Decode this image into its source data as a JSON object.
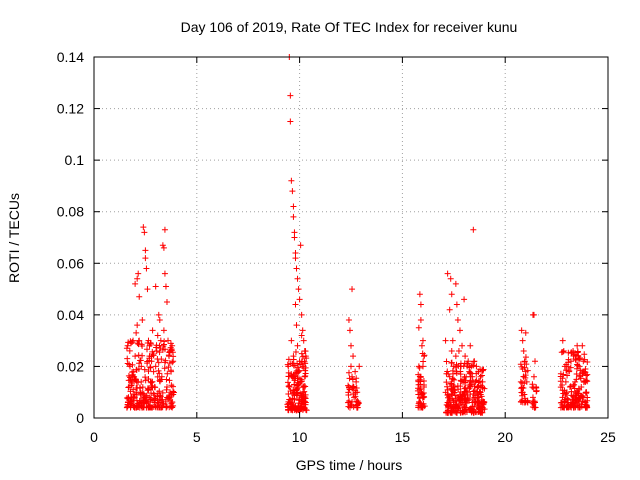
{
  "chart_data": {
    "type": "scatter",
    "title": "Day 106 of 2019, Rate Of TEC Index for receiver kunu",
    "xlabel": "GPS time / hours",
    "ylabel": "ROTI / TECUs",
    "xlim": [
      0,
      25
    ],
    "ylim": [
      0,
      0.14
    ],
    "xticks": [
      0,
      5,
      10,
      15,
      20,
      25
    ],
    "xtick_labels": [
      "0",
      "5",
      "10",
      "15",
      "20",
      "25"
    ],
    "yticks": [
      0,
      0.02,
      0.04,
      0.06,
      0.08,
      0.1,
      0.12,
      0.14
    ],
    "ytick_labels": [
      "0",
      "0.02",
      "0.04",
      "0.06",
      "0.08",
      "0.1",
      "0.12",
      "0.14"
    ],
    "grid": true,
    "marker": "+",
    "color": "#ff0000",
    "series": [
      {
        "points": [
          [
            1.6,
            0.004
          ],
          [
            1.7,
            0.012
          ],
          [
            1.75,
            0.02
          ],
          [
            1.8,
            0.029
          ],
          [
            1.85,
            0.008
          ],
          [
            1.9,
            0.03
          ],
          [
            1.95,
            0.016
          ],
          [
            2.0,
            0.024
          ],
          [
            2.05,
            0.033
          ],
          [
            2.1,
            0.036
          ],
          [
            2.0,
            0.052
          ],
          [
            2.1,
            0.054
          ],
          [
            2.15,
            0.056
          ],
          [
            2.2,
            0.047
          ],
          [
            2.25,
            0.01
          ],
          [
            2.3,
            0.02
          ],
          [
            2.35,
            0.038
          ],
          [
            2.4,
            0.074
          ],
          [
            2.45,
            0.072
          ],
          [
            2.5,
            0.062
          ],
          [
            2.5,
            0.065
          ],
          [
            2.55,
            0.058
          ],
          [
            2.6,
            0.05
          ],
          [
            2.65,
            0.03
          ],
          [
            2.7,
            0.028
          ],
          [
            2.75,
            0.014
          ],
          [
            2.8,
            0.022
          ],
          [
            2.85,
            0.034
          ],
          [
            2.9,
            0.018
          ],
          [
            2.95,
            0.012
          ],
          [
            3.0,
            0.051
          ],
          [
            3.05,
            0.026
          ],
          [
            3.1,
            0.032
          ],
          [
            3.15,
            0.04
          ],
          [
            3.2,
            0.038
          ],
          [
            3.25,
            0.03
          ],
          [
            3.3,
            0.016
          ],
          [
            3.35,
            0.067
          ],
          [
            3.4,
            0.066
          ],
          [
            3.45,
            0.073
          ],
          [
            3.45,
            0.056
          ],
          [
            3.5,
            0.051
          ],
          [
            3.55,
            0.045
          ],
          [
            3.6,
            0.03
          ],
          [
            3.65,
            0.024
          ],
          [
            3.7,
            0.01
          ],
          [
            3.75,
            0.018
          ],
          [
            3.8,
            0.028
          ],
          [
            3.85,
            0.022
          ],
          [
            3.6,
            0.008
          ],
          [
            1.65,
            0.006
          ],
          [
            2.05,
            0.01
          ],
          [
            2.45,
            0.006
          ],
          [
            2.95,
            0.006
          ],
          [
            3.25,
            0.006
          ],
          [
            3.55,
            0.012
          ],
          [
            2.2,
            0.03
          ],
          [
            2.7,
            0.024
          ],
          [
            3.0,
            0.02
          ],
          [
            3.4,
            0.034
          ],
          [
            9.5,
            0.14
          ],
          [
            9.55,
            0.125
          ],
          [
            9.55,
            0.115
          ],
          [
            9.6,
            0.092
          ],
          [
            9.65,
            0.088
          ],
          [
            9.7,
            0.082
          ],
          [
            9.7,
            0.078
          ],
          [
            9.75,
            0.072
          ],
          [
            9.75,
            0.07
          ],
          [
            9.8,
            0.064
          ],
          [
            9.8,
            0.062
          ],
          [
            9.85,
            0.058
          ],
          [
            9.9,
            0.054
          ],
          [
            9.95,
            0.05
          ],
          [
            10.0,
            0.046
          ],
          [
            10.05,
            0.067
          ],
          [
            10.1,
            0.04
          ],
          [
            10.15,
            0.034
          ],
          [
            10.2,
            0.03
          ],
          [
            10.25,
            0.026
          ],
          [
            9.45,
            0.02
          ],
          [
            9.5,
            0.012
          ],
          [
            9.55,
            0.006
          ],
          [
            9.6,
            0.03
          ],
          [
            9.65,
            0.016
          ],
          [
            9.7,
            0.024
          ],
          [
            9.75,
            0.01
          ],
          [
            9.85,
            0.036
          ],
          [
            9.9,
            0.028
          ],
          [
            9.95,
            0.018
          ],
          [
            10.0,
            0.022
          ],
          [
            10.05,
            0.014
          ],
          [
            10.1,
            0.008
          ],
          [
            10.15,
            0.02
          ],
          [
            10.2,
            0.012
          ],
          [
            10.25,
            0.016
          ],
          [
            10.3,
            0.024
          ],
          [
            10.3,
            0.006
          ],
          [
            9.8,
            0.044
          ],
          [
            10.1,
            0.032
          ],
          [
            12.4,
            0.038
          ],
          [
            12.45,
            0.034
          ],
          [
            12.5,
            0.028
          ],
          [
            12.55,
            0.05
          ],
          [
            12.5,
            0.02
          ],
          [
            12.55,
            0.016
          ],
          [
            12.6,
            0.012
          ],
          [
            12.65,
            0.008
          ],
          [
            12.45,
            0.004
          ],
          [
            12.7,
            0.018
          ],
          [
            12.75,
            0.014
          ],
          [
            12.8,
            0.01
          ],
          [
            12.85,
            0.006
          ],
          [
            12.9,
            0.02
          ],
          [
            12.6,
            0.024
          ],
          [
            12.4,
            0.012
          ],
          [
            15.8,
            0.035
          ],
          [
            15.85,
            0.048
          ],
          [
            15.9,
            0.044
          ],
          [
            15.95,
            0.028
          ],
          [
            16.0,
            0.02
          ],
          [
            16.05,
            0.012
          ],
          [
            15.85,
            0.008
          ],
          [
            15.9,
            0.016
          ],
          [
            16.0,
            0.03
          ],
          [
            15.95,
            0.004
          ],
          [
            16.05,
            0.024
          ],
          [
            15.8,
            0.02
          ],
          [
            15.9,
            0.038
          ],
          [
            17.1,
            0.03
          ],
          [
            17.2,
            0.056
          ],
          [
            17.3,
            0.042
          ],
          [
            17.35,
            0.054
          ],
          [
            17.4,
            0.048
          ],
          [
            17.45,
            0.03
          ],
          [
            17.5,
            0.02
          ],
          [
            17.55,
            0.012
          ],
          [
            17.6,
            0.052
          ],
          [
            17.65,
            0.044
          ],
          [
            17.7,
            0.038
          ],
          [
            17.75,
            0.026
          ],
          [
            17.8,
            0.034
          ],
          [
            17.85,
            0.02
          ],
          [
            17.9,
            0.028
          ],
          [
            17.95,
            0.014
          ],
          [
            18.0,
            0.046
          ],
          [
            18.05,
            0.024
          ],
          [
            18.1,
            0.016
          ],
          [
            18.15,
            0.01
          ],
          [
            18.2,
            0.022
          ],
          [
            18.25,
            0.018
          ],
          [
            18.3,
            0.012
          ],
          [
            18.35,
            0.02
          ],
          [
            18.4,
            0.016
          ],
          [
            18.45,
            0.073
          ],
          [
            18.5,
            0.022
          ],
          [
            18.55,
            0.014
          ],
          [
            18.6,
            0.02
          ],
          [
            18.65,
            0.012
          ],
          [
            18.7,
            0.018
          ],
          [
            18.75,
            0.01
          ],
          [
            18.8,
            0.016
          ],
          [
            18.85,
            0.006
          ],
          [
            18.9,
            0.014
          ],
          [
            17.2,
            0.006
          ],
          [
            17.5,
            0.004
          ],
          [
            17.8,
            0.008
          ],
          [
            18.1,
            0.004
          ],
          [
            18.4,
            0.006
          ],
          [
            17.3,
            0.016
          ],
          [
            17.6,
            0.024
          ],
          [
            17.9,
            0.006
          ],
          [
            18.3,
            0.028
          ],
          [
            18.7,
            0.004
          ],
          [
            17.4,
            0.026
          ],
          [
            20.8,
            0.034
          ],
          [
            20.85,
            0.03
          ],
          [
            20.9,
            0.026
          ],
          [
            20.95,
            0.022
          ],
          [
            21.0,
            0.018
          ],
          [
            21.05,
            0.014
          ],
          [
            20.85,
            0.01
          ],
          [
            20.95,
            0.006
          ],
          [
            21.0,
            0.033
          ],
          [
            20.9,
            0.016
          ],
          [
            21.35,
            0.04
          ],
          [
            21.4,
            0.04
          ],
          [
            21.45,
            0.022
          ],
          [
            21.4,
            0.016
          ],
          [
            21.5,
            0.012
          ],
          [
            21.45,
            0.006
          ],
          [
            21.35,
            0.008
          ],
          [
            22.8,
            0.03
          ],
          [
            22.85,
            0.026
          ],
          [
            22.9,
            0.02
          ],
          [
            22.95,
            0.014
          ],
          [
            23.0,
            0.01
          ],
          [
            23.05,
            0.006
          ],
          [
            23.1,
            0.018
          ],
          [
            23.2,
            0.022
          ],
          [
            23.3,
            0.026
          ],
          [
            23.4,
            0.014
          ],
          [
            23.5,
            0.028
          ],
          [
            23.55,
            0.024
          ],
          [
            23.6,
            0.02
          ],
          [
            23.65,
            0.016
          ],
          [
            23.7,
            0.012
          ],
          [
            23.75,
            0.028
          ],
          [
            23.8,
            0.022
          ],
          [
            23.85,
            0.018
          ],
          [
            23.9,
            0.014
          ],
          [
            23.95,
            0.01
          ],
          [
            23.3,
            0.006
          ],
          [
            23.6,
            0.004
          ],
          [
            23.9,
            0.006
          ],
          [
            23.15,
            0.012
          ],
          [
            23.45,
            0.008
          ],
          [
            23.8,
            0.008
          ]
        ],
        "clusters": [
          {
            "x": [
              1.6,
              3.9
            ],
            "y": [
              0.004,
              0.03
            ],
            "count": 260
          },
          {
            "x": [
              9.4,
              10.35
            ],
            "y": [
              0.003,
              0.026
            ],
            "count": 150
          },
          {
            "x": [
              12.35,
              12.9
            ],
            "y": [
              0.004,
              0.02
            ],
            "count": 35
          },
          {
            "x": [
              15.75,
              16.1
            ],
            "y": [
              0.004,
              0.026
            ],
            "count": 45
          },
          {
            "x": [
              17.1,
              19.0
            ],
            "y": [
              0.002,
              0.022
            ],
            "count": 260
          },
          {
            "x": [
              20.75,
              21.1
            ],
            "y": [
              0.006,
              0.024
            ],
            "count": 35
          },
          {
            "x": [
              21.3,
              21.55
            ],
            "y": [
              0.004,
              0.014
            ],
            "count": 15
          },
          {
            "x": [
              22.7,
              24.0
            ],
            "y": [
              0.004,
              0.026
            ],
            "count": 160
          }
        ]
      }
    ]
  }
}
